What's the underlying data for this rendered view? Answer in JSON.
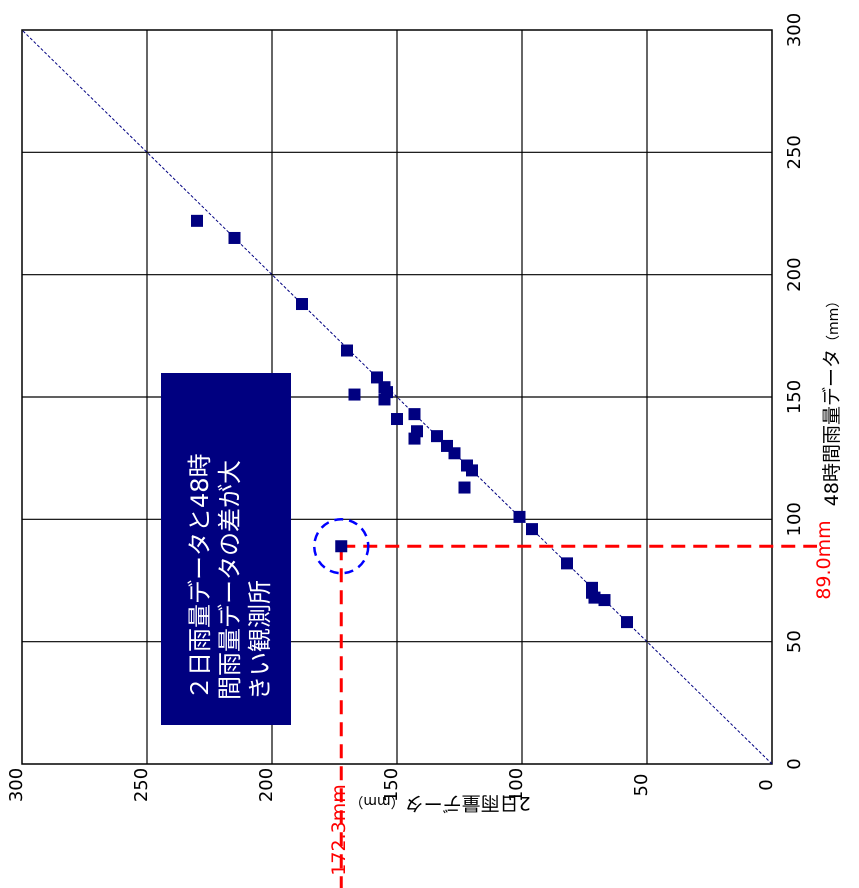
{
  "chart_data": {
    "type": "scatter",
    "orientation": "rotated-90-clockwise",
    "x_axis": {
      "label": "48時間雨量データ",
      "unit": "（mm）",
      "range": [
        0,
        300
      ],
      "ticks": [
        "0",
        "50",
        "100",
        "150",
        "200",
        "250",
        "300"
      ]
    },
    "y_axis": {
      "label": "2日雨量データ",
      "unit": "（mm）",
      "range": [
        0,
        300
      ],
      "ticks": [
        "0",
        "50",
        "100",
        "150",
        "200",
        "250",
        "300"
      ]
    },
    "grid": true,
    "reference_line": {
      "type": "y=x",
      "style": "dashed"
    },
    "series": [
      {
        "points": [
          {
            "x": 58,
            "y": 58
          },
          {
            "x": 67,
            "y": 67
          },
          {
            "x": 68,
            "y": 71
          },
          {
            "x": 70,
            "y": 72
          },
          {
            "x": 72,
            "y": 72
          },
          {
            "x": 82,
            "y": 82
          },
          {
            "x": 96,
            "y": 96
          },
          {
            "x": 101,
            "y": 101
          },
          {
            "x": 113,
            "y": 123
          },
          {
            "x": 120,
            "y": 120
          },
          {
            "x": 122,
            "y": 122
          },
          {
            "x": 127,
            "y": 127
          },
          {
            "x": 130,
            "y": 130
          },
          {
            "x": 134,
            "y": 134
          },
          {
            "x": 133,
            "y": 143
          },
          {
            "x": 136,
            "y": 142
          },
          {
            "x": 141,
            "y": 150
          },
          {
            "x": 143,
            "y": 143
          },
          {
            "x": 149,
            "y": 155
          },
          {
            "x": 151,
            "y": 167
          },
          {
            "x": 152,
            "y": 154
          },
          {
            "x": 154,
            "y": 155
          },
          {
            "x": 158,
            "y": 158
          },
          {
            "x": 169,
            "y": 170
          },
          {
            "x": 188,
            "y": 188
          },
          {
            "x": 215,
            "y": 215
          },
          {
            "x": 222,
            "y": 230
          },
          {
            "x": 89,
            "y": 172.3
          }
        ]
      }
    ],
    "highlight_point": {
      "x": 89.0,
      "y": 172.3
    },
    "annotations": {
      "x_value_label": "89.0mm",
      "y_value_label": "172.3mm",
      "note_lines": [
        "２日雨量データと48時",
        "間雨量データの差が大",
        "きい観測所"
      ]
    },
    "colors": {
      "marker": "#000080",
      "note_box": "#000080",
      "note_text": "#ffffff",
      "highlight": "#ff0000",
      "circle": "#0000ff",
      "grid": "#000000",
      "diagonal": "#000080"
    }
  }
}
